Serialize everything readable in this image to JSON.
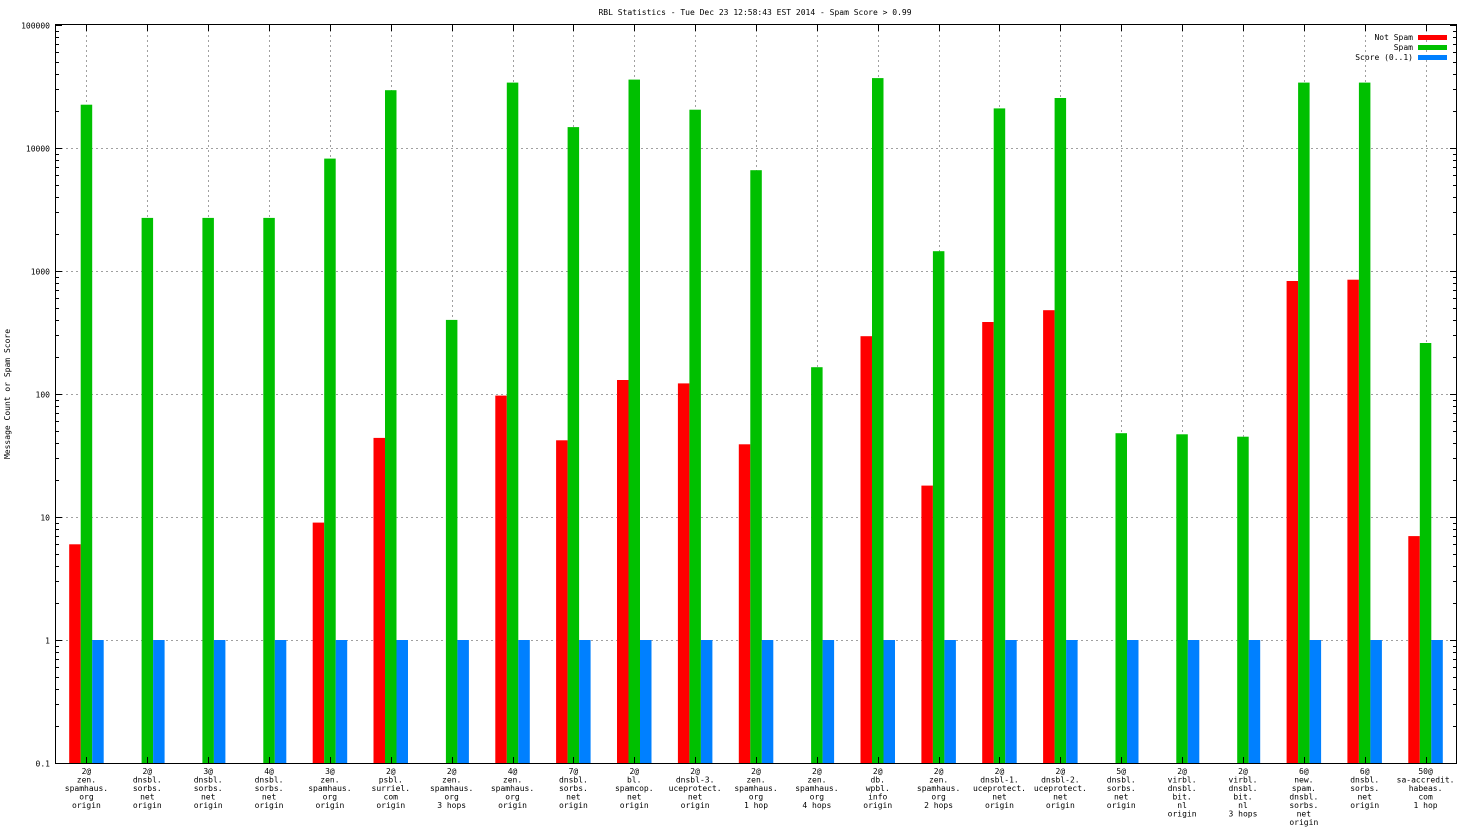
{
  "chart_data": {
    "type": "bar",
    "title": "RBL Statistics - Tue Dec 23 12:58:43 EST 2014 - Spam Score > 0.99",
    "xlabel": "",
    "ylabel": "Message Count or Spam Score",
    "yscale": "log",
    "ylim": [
      0.1,
      100000
    ],
    "yticks": [
      "0.1",
      "1",
      "10",
      "100",
      "1000",
      "10000",
      "100000"
    ],
    "grid": true,
    "legend_position": "top-right",
    "categories": [
      [
        "2@",
        "zen.",
        "spamhaus.",
        "org",
        "origin"
      ],
      [
        "2@",
        "dnsbl.",
        "sorbs.",
        "net",
        "origin"
      ],
      [
        "3@",
        "dnsbl.",
        "sorbs.",
        "net",
        "origin"
      ],
      [
        "4@",
        "dnsbl.",
        "sorbs.",
        "net",
        "origin"
      ],
      [
        "3@",
        "zen.",
        "spamhaus.",
        "org",
        "origin"
      ],
      [
        "2@",
        "psbl.",
        "surriel.",
        "com",
        "origin"
      ],
      [
        "2@",
        "zen.",
        "spamhaus.",
        "org",
        "3 hops"
      ],
      [
        "4@",
        "zen.",
        "spamhaus.",
        "org",
        "origin"
      ],
      [
        "7@",
        "dnsbl.",
        "sorbs.",
        "net",
        "origin"
      ],
      [
        "2@",
        "bl.",
        "spamcop.",
        "net",
        "origin"
      ],
      [
        "2@",
        "dnsbl-3.",
        "uceprotect.",
        "net",
        "origin"
      ],
      [
        "2@",
        "zen.",
        "spamhaus.",
        "org",
        "1 hop"
      ],
      [
        "2@",
        "zen.",
        "spamhaus.",
        "org",
        "4 hops"
      ],
      [
        "2@",
        "db.",
        "wpbl.",
        "info",
        "origin"
      ],
      [
        "2@",
        "zen.",
        "spamhaus.",
        "org",
        "2 hops"
      ],
      [
        "2@",
        "dnsbl-1.",
        "uceprotect.",
        "net",
        "origin"
      ],
      [
        "2@",
        "dnsbl-2.",
        "uceprotect.",
        "net",
        "origin"
      ],
      [
        "5@",
        "dnsbl.",
        "sorbs.",
        "net",
        "origin"
      ],
      [
        "2@",
        "virbl.",
        "dnsbl.",
        "bit.",
        "nl",
        "origin"
      ],
      [
        "2@",
        "virbl.",
        "dnsbl.",
        "bit.",
        "nl",
        "3 hops"
      ],
      [
        "6@",
        "new.",
        "spam.",
        "dnsbl.",
        "sorbs.",
        "net",
        "origin"
      ],
      [
        "6@",
        "dnsbl.",
        "sorbs.",
        "net",
        "origin"
      ],
      [
        "50@",
        "sa-accredit.",
        "habeas.",
        "com",
        "1 hop"
      ]
    ],
    "series": [
      {
        "name": "Not Spam",
        "color": "#ff0000",
        "values": [
          6,
          null,
          null,
          null,
          9,
          44,
          null,
          97,
          42,
          130,
          122,
          39,
          null,
          295,
          18,
          385,
          480,
          null,
          null,
          null,
          830,
          850,
          7
        ]
      },
      {
        "name": "Spam",
        "color": "#00c000",
        "values": [
          22500,
          2700,
          2700,
          2700,
          8200,
          29500,
          400,
          34000,
          14800,
          36000,
          20500,
          6600,
          165,
          37000,
          1450,
          21000,
          25500,
          48,
          47,
          45,
          34000,
          34000,
          260
        ]
      },
      {
        "name": "Score (0..1)",
        "color": "#0080ff",
        "values": [
          1,
          1,
          1,
          1,
          1,
          1,
          1,
          1,
          1,
          1,
          1,
          1,
          1,
          1,
          1,
          1,
          1,
          1,
          1,
          1,
          1,
          1,
          1
        ]
      }
    ]
  }
}
